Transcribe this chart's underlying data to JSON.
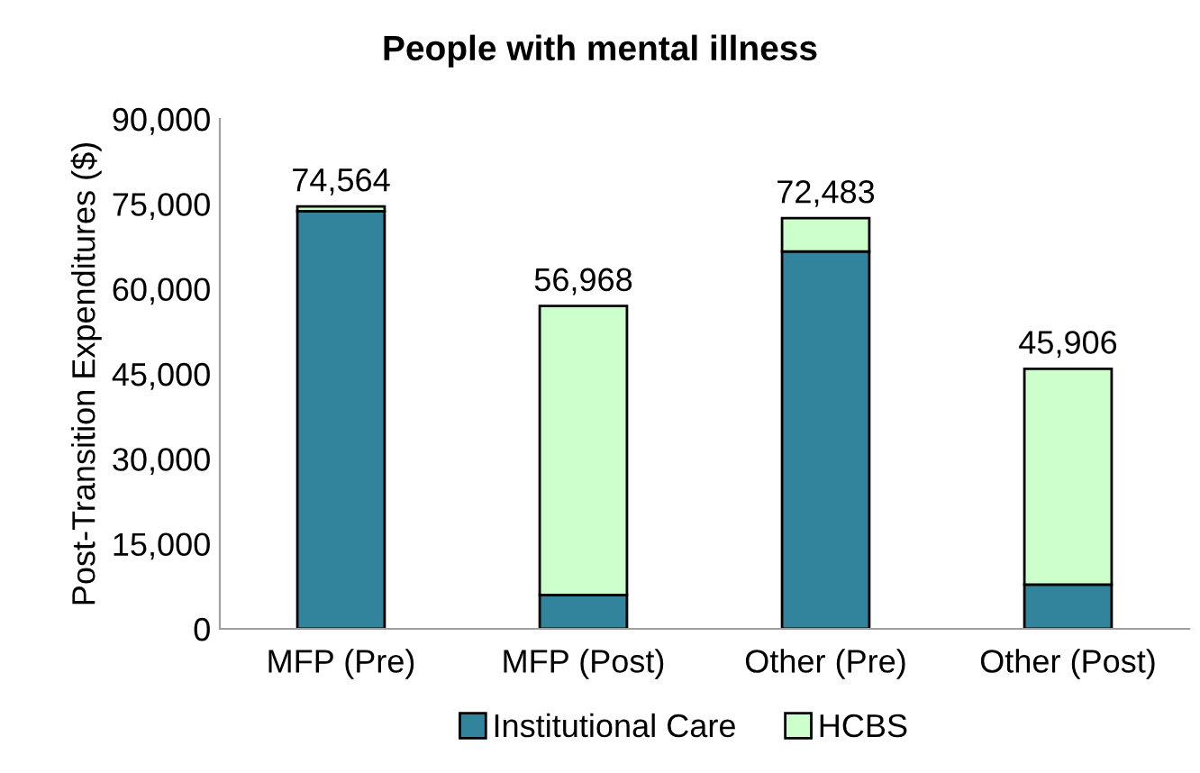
{
  "chart_data": {
    "type": "bar",
    "title": "People with mental illness",
    "ylabel": "Post-Transition Expenditures ($)",
    "categories": [
      "MFP (Pre)",
      "MFP (Post)",
      "Other (Pre)",
      "Other (Post)"
    ],
    "stacked": true,
    "series": [
      {
        "name": "Institutional Care",
        "color": "#31849b",
        "values": [
          73700,
          6000,
          66600,
          7800
        ]
      },
      {
        "name": "HCBS",
        "color": "#ccffcc",
        "values": [
          864,
          50968,
          5883,
          38106
        ]
      }
    ],
    "totals": [
      "74,564",
      "56,968",
      "72,483",
      "45,906"
    ],
    "ylim": [
      0,
      90000
    ],
    "yticks": [
      {
        "value": 0,
        "label": "0"
      },
      {
        "value": 15000,
        "label": "15,000"
      },
      {
        "value": 30000,
        "label": "30,000"
      },
      {
        "value": 45000,
        "label": "45,000"
      },
      {
        "value": 60000,
        "label": "60,000"
      },
      {
        "value": 75000,
        "label": "75,000"
      },
      {
        "value": 90000,
        "label": "90,000"
      }
    ],
    "grid": false,
    "legend": "bottom"
  }
}
